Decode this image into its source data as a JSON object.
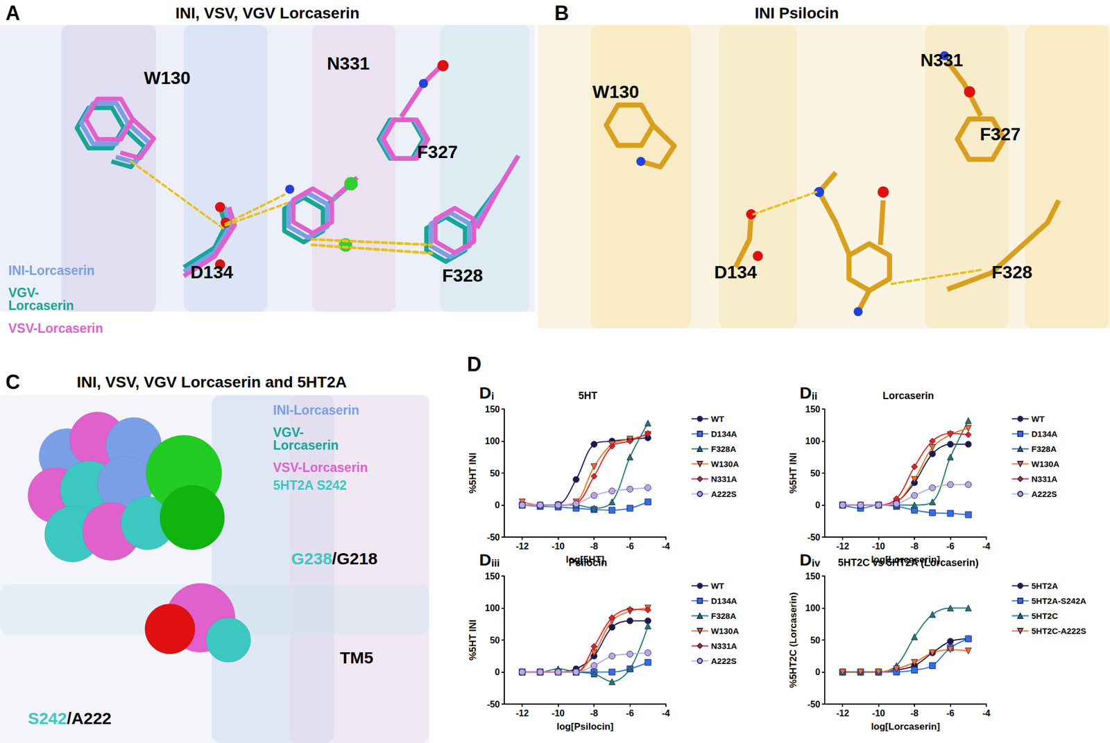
{
  "panels": [
    {
      "label": "A",
      "title": "INI, VSV, VGV Lorcaserin",
      "residues": [
        "W130",
        "N331",
        "F327",
        "D134",
        "F328"
      ],
      "legend": [
        {
          "name": "INI-Lorcaserin",
          "color": "#7a9fe6"
        },
        {
          "name": "VGV-\nLorcaserin",
          "color": "#17a596"
        },
        {
          "name": "VSV-Lorcaserin",
          "color": "#e060cc"
        }
      ]
    },
    {
      "label": "B",
      "title": "INI Psilocin",
      "residues": [
        "W130",
        "N331",
        "F327",
        "D134",
        "F328"
      ]
    },
    {
      "label": "C",
      "title": "INI, VSV, VGV Lorcaserin and 5HT2A",
      "legend": [
        {
          "name": "INI-Lorcaserin",
          "color": "#7a9fe6"
        },
        {
          "name": "VGV-\nLorcaserin",
          "color": "#17a596"
        },
        {
          "name": "VSV-Lorcaserin",
          "color": "#e060cc"
        },
        {
          "name": "5HT2A S242",
          "color": "#3cc8c0"
        }
      ],
      "residues": [
        "G238/G218",
        "TM5",
        "S242/A222"
      ]
    }
  ],
  "group_label": "D",
  "chart_data": [
    {
      "type": "line",
      "panel": "Di",
      "title": "5HT",
      "x_label": "log[5HT]",
      "y_label": "%5HT INI",
      "xlim": [
        -13,
        -4
      ],
      "xticks": [
        -12,
        -10,
        -8,
        -6,
        -4
      ],
      "ylim": [
        -50,
        150
      ],
      "yticks": [
        -50,
        0,
        50,
        100,
        150
      ],
      "grid": false,
      "legend": "right",
      "x": [
        -12,
        -11,
        -10,
        -9,
        -8,
        -7,
        -6,
        -5
      ],
      "series": [
        {
          "name": "WT",
          "color": "#1c1a4a",
          "marker": "circle",
          "values": [
            0,
            0,
            1,
            40,
            95,
            100,
            103,
            105
          ]
        },
        {
          "name": "D134A",
          "color": "#2f6fe8",
          "marker": "square",
          "values": [
            0,
            -2,
            -3,
            -5,
            -7,
            -8,
            -5,
            5
          ]
        },
        {
          "name": "F328A",
          "color": "#1d7a6c",
          "marker": "triangle",
          "values": [
            0,
            0,
            0,
            0,
            -5,
            5,
            75,
            128
          ]
        },
        {
          "name": "W130A",
          "color": "#ff6a1a",
          "marker": "triangle_down",
          "values": [
            5,
            0,
            0,
            5,
            60,
            95,
            103,
            110
          ]
        },
        {
          "name": "N331A",
          "color": "#e8201a",
          "marker": "diamond",
          "values": [
            0,
            0,
            0,
            3,
            45,
            92,
            100,
            112
          ]
        },
        {
          "name": "A222S",
          "color": "#b9a8e6",
          "marker": "circle",
          "values": [
            0,
            0,
            0,
            2,
            15,
            22,
            25,
            27
          ]
        }
      ]
    },
    {
      "type": "line",
      "panel": "Dii",
      "title": "Lorcaserin",
      "x_label": "log[Lorcaserin]",
      "y_label": "%5HT INI",
      "xlim": [
        -13,
        -4
      ],
      "xticks": [
        -12,
        -10,
        -8,
        -6,
        -4
      ],
      "ylim": [
        -50,
        150
      ],
      "yticks": [
        -50,
        0,
        50,
        100,
        150
      ],
      "grid": false,
      "legend": "right",
      "x": [
        -12,
        -11,
        -10,
        -9,
        -8,
        -7,
        -6,
        -5
      ],
      "series": [
        {
          "name": "WT",
          "color": "#1c1a4a",
          "marker": "circle",
          "values": [
            0,
            0,
            0,
            5,
            35,
            80,
            95,
            95
          ]
        },
        {
          "name": "D134A",
          "color": "#2f6fe8",
          "marker": "square",
          "values": [
            0,
            -5,
            0,
            -2,
            -8,
            -12,
            -13,
            -15
          ]
        },
        {
          "name": "F328A",
          "color": "#1d7a6c",
          "marker": "triangle",
          "values": [
            0,
            0,
            0,
            0,
            0,
            5,
            75,
            132
          ]
        },
        {
          "name": "W130A",
          "color": "#ff6a1a",
          "marker": "triangle_down",
          "values": [
            0,
            0,
            0,
            5,
            40,
            90,
            110,
            120
          ]
        },
        {
          "name": "N331A",
          "color": "#e8201a",
          "marker": "diamond",
          "values": [
            0,
            0,
            0,
            10,
            60,
            100,
            112,
            110
          ]
        },
        {
          "name": "A222S",
          "color": "#b9a8e6",
          "marker": "circle",
          "values": [
            0,
            0,
            0,
            2,
            15,
            27,
            32,
            32
          ]
        }
      ]
    },
    {
      "type": "line",
      "panel": "Diii",
      "title": "Psilocin",
      "x_label": "log[Psilocin]",
      "y_label": "%5HT INI",
      "xlim": [
        -13,
        -4
      ],
      "xticks": [
        -12,
        -10,
        -8,
        -6,
        -4
      ],
      "ylim": [
        -50,
        150
      ],
      "yticks": [
        -50,
        0,
        50,
        100,
        150
      ],
      "grid": false,
      "legend": "right",
      "x": [
        -12,
        -11,
        -10,
        -9,
        -8,
        -7,
        -6,
        -5
      ],
      "series": [
        {
          "name": "WT",
          "color": "#1c1a4a",
          "marker": "circle",
          "values": [
            0,
            0,
            0,
            5,
            25,
            70,
            80,
            80
          ]
        },
        {
          "name": "D134A",
          "color": "#2f6fe8",
          "marker": "square",
          "values": [
            0,
            0,
            0,
            0,
            0,
            0,
            5,
            15
          ]
        },
        {
          "name": "F328A",
          "color": "#1d7a6c",
          "marker": "triangle",
          "values": [
            0,
            0,
            5,
            0,
            -3,
            -15,
            5,
            72
          ]
        },
        {
          "name": "W130A",
          "color": "#ff6a1a",
          "marker": "triangle_down",
          "values": [
            0,
            0,
            0,
            0,
            30,
            80,
            95,
            100
          ]
        },
        {
          "name": "N331A",
          "color": "#e8201a",
          "marker": "diamond",
          "values": [
            0,
            0,
            0,
            0,
            40,
            85,
            98,
            97
          ]
        },
        {
          "name": "A222S",
          "color": "#b9a8e6",
          "marker": "circle",
          "values": [
            0,
            0,
            0,
            0,
            10,
            25,
            28,
            30
          ]
        }
      ]
    },
    {
      "type": "line",
      "panel": "Div",
      "title": "5HT2C vs 5HT2A (Lorcaserin)",
      "x_label": "log[Lorcaserin]",
      "y_label": "%5HT2C (Lorcaserin)",
      "xlim": [
        -13,
        -4
      ],
      "xticks": [
        -12,
        -10,
        -8,
        -6,
        -4
      ],
      "ylim": [
        -50,
        150
      ],
      "yticks": [
        -50,
        0,
        50,
        100,
        150
      ],
      "grid": false,
      "legend": "right",
      "x": [
        -12,
        -11,
        -10,
        -9,
        -8,
        -7,
        -6,
        -5
      ],
      "series": [
        {
          "name": "5HT2A",
          "color": "#1c1a4a",
          "marker": "circle",
          "values": [
            0,
            0,
            0,
            3,
            10,
            30,
            48,
            52
          ]
        },
        {
          "name": "5HT2A-S242A",
          "color": "#2f6fe8",
          "marker": "square",
          "values": [
            0,
            0,
            0,
            0,
            3,
            10,
            38,
            52
          ]
        },
        {
          "name": "5HT2C",
          "color": "#1d7a6c",
          "marker": "triangle",
          "values": [
            0,
            0,
            0,
            10,
            55,
            90,
            100,
            100
          ]
        },
        {
          "name": "5HT2C-A222S",
          "color": "#ff6a1a",
          "marker": "triangle_down",
          "values": [
            0,
            0,
            0,
            5,
            15,
            30,
            35,
            33
          ]
        }
      ]
    }
  ]
}
